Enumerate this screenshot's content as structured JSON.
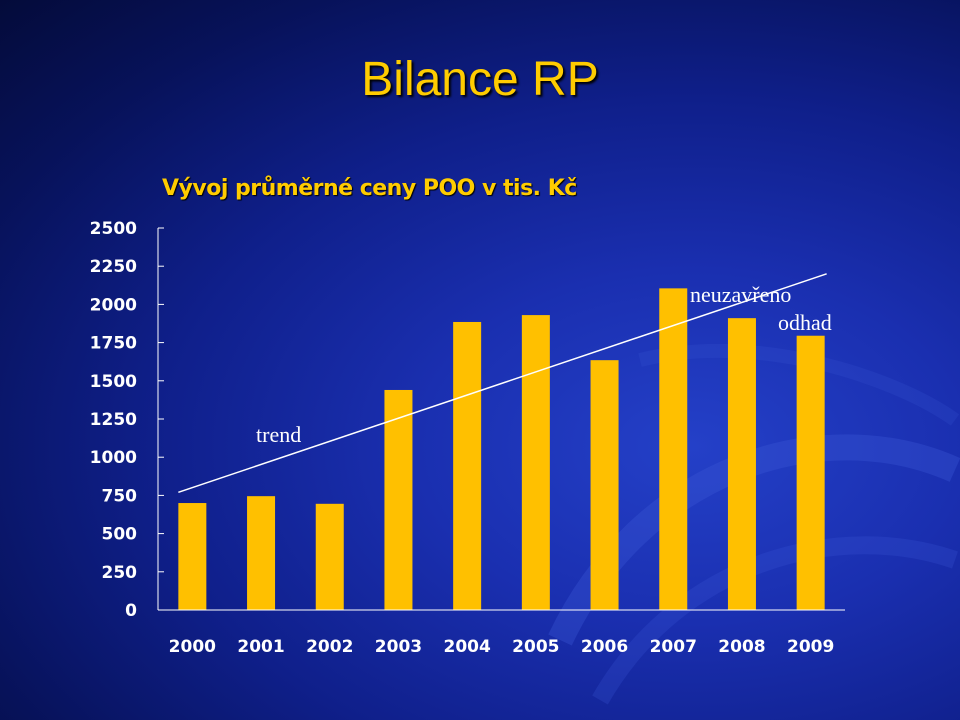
{
  "slide": {
    "title": "Bilance RP"
  },
  "chart_data": {
    "type": "bar",
    "title": "Vývoj průměrné ceny POO v tis. Kč",
    "categories": [
      "2000",
      "2001",
      "2002",
      "2003",
      "2004",
      "2005",
      "2006",
      "2007",
      "2008",
      "2009"
    ],
    "values": [
      700,
      745,
      695,
      1440,
      1885,
      1930,
      1635,
      2105,
      1910,
      1795
    ],
    "ylim": [
      0,
      2500
    ],
    "yticks": [
      0,
      250,
      500,
      750,
      1000,
      1250,
      1500,
      1750,
      2000,
      2250,
      2500
    ],
    "grid": false,
    "trend": {
      "from": [
        2000,
        770
      ],
      "to": [
        2009,
        2200
      ]
    },
    "annotations": {
      "trend": "trend",
      "open": "neuzavřeno",
      "estimate": "odhad"
    },
    "colors": {
      "bar": "#ffc000",
      "axis": "#ffffff",
      "trend": "#ffffff"
    }
  }
}
